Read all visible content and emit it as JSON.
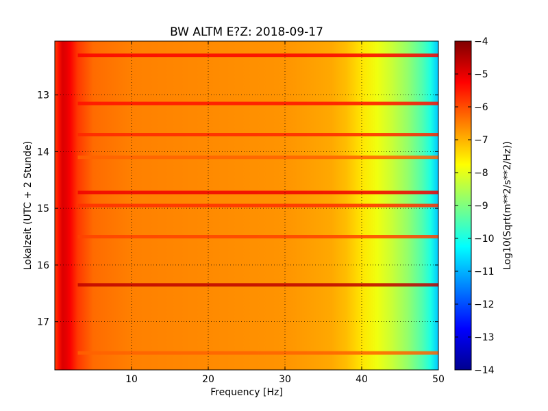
{
  "chart_data": {
    "type": "heatmap",
    "title": "BW ALTM E?Z: 2018-09-17",
    "xlabel": "Frequency [Hz]",
    "ylabel": "Lokalzeit (UTC + 2 Stunde)",
    "xlim": [
      0,
      50
    ],
    "ylim": [
      17.85,
      12.05
    ],
    "y_inverted": true,
    "x_ticks": [
      10,
      20,
      30,
      40,
      50
    ],
    "x_tick_labels": [
      "10",
      "20",
      "30",
      "40",
      "50"
    ],
    "y_ticks": [
      13,
      14,
      15,
      16,
      17
    ],
    "y_tick_labels": [
      "13",
      "14",
      "15",
      "16",
      "17"
    ],
    "grid": true,
    "colorbar": {
      "label": "Log10(Sqrt(m**2/s**2/Hz))",
      "range": [
        -14,
        -4
      ],
      "ticks": [
        -4,
        -5,
        -6,
        -7,
        -8,
        -9,
        -10,
        -11,
        -12,
        -13,
        -14
      ],
      "tick_labels": [
        "−4",
        "−5",
        "−6",
        "−7",
        "−8",
        "−9",
        "−10",
        "−11",
        "−12",
        "−13",
        "−14"
      ],
      "colormap": "jet"
    },
    "spectrum_profile": {
      "frequency_hz": [
        0,
        0.5,
        1,
        1.5,
        2,
        3,
        5,
        10,
        20,
        30,
        36,
        38,
        40,
        42,
        44,
        46,
        48,
        49,
        50
      ],
      "log10_amplitude": [
        -5.9,
        -5.4,
        -4.9,
        -5.0,
        -5.2,
        -5.8,
        -6.3,
        -6.5,
        -6.6,
        -6.7,
        -6.9,
        -7.1,
        -7.5,
        -7.9,
        -8.3,
        -8.8,
        -9.5,
        -10.0,
        -10.8
      ]
    },
    "horizontal_bands": [
      {
        "time": 12.3,
        "level": -5.2
      },
      {
        "time": 13.15,
        "level": -5.4
      },
      {
        "time": 13.7,
        "level": -5.6
      },
      {
        "time": 14.1,
        "level": -6.2
      },
      {
        "time": 14.72,
        "level": -5.1
      },
      {
        "time": 14.95,
        "level": -5.7
      },
      {
        "time": 15.5,
        "level": -5.9
      },
      {
        "time": 16.35,
        "level": -4.6
      },
      {
        "time": 17.55,
        "level": -6.2
      }
    ]
  }
}
